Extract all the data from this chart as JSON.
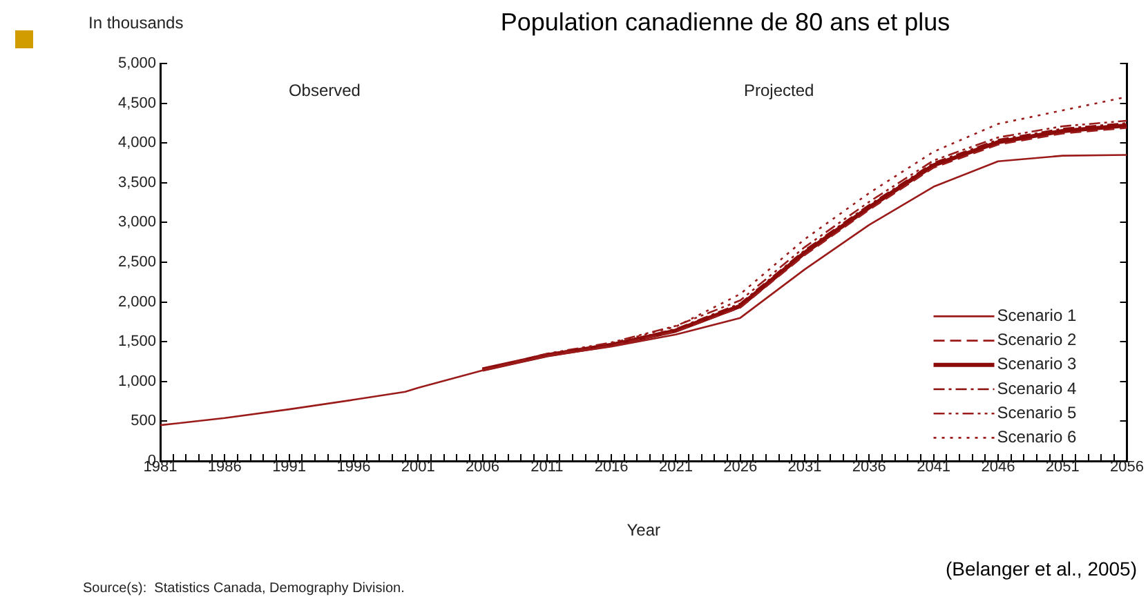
{
  "chart_data": {
    "type": "line",
    "title": "Population canadienne de 80 ans et plus",
    "xlabel": "Year",
    "ylabel": "In thousands",
    "xlim": [
      1981,
      2056
    ],
    "xticks": [
      1981,
      {
        "value": 1982,
        "label": null
      },
      {
        "value": 1983,
        "label": null
      },
      {
        "value": 1984,
        "label": null
      },
      {
        "value": 1985,
        "label": null
      },
      1986,
      {
        "value": 1987,
        "label": null
      },
      {
        "value": 1988,
        "label": null
      },
      {
        "value": 1989,
        "label": null
      },
      {
        "value": 1990,
        "label": null
      },
      1991,
      {
        "value": 1992,
        "label": null
      },
      {
        "value": 1993,
        "label": null
      },
      {
        "value": 1994,
        "label": null
      },
      {
        "value": 1995,
        "label": null
      },
      1996,
      {
        "value": 1997,
        "label": null
      },
      {
        "value": 1998,
        "label": null
      },
      {
        "value": 1999,
        "label": null
      },
      {
        "value": 2000,
        "label": null
      },
      2001,
      {
        "value": 2002,
        "label": null
      },
      {
        "value": 2003,
        "label": null
      },
      {
        "value": 2004,
        "label": null
      },
      {
        "value": 2005,
        "label": null
      },
      2006,
      {
        "value": 2007,
        "label": null
      },
      {
        "value": 2008,
        "label": null
      },
      {
        "value": 2009,
        "label": null
      },
      {
        "value": 2010,
        "label": null
      },
      2011,
      {
        "value": 2012,
        "label": null
      },
      {
        "value": 2013,
        "label": null
      },
      {
        "value": 2014,
        "label": null
      },
      {
        "value": 2015,
        "label": null
      },
      2016,
      {
        "value": 2017,
        "label": null
      },
      {
        "value": 2018,
        "label": null
      },
      {
        "value": 2019,
        "label": null
      },
      {
        "value": 2020,
        "label": null
      },
      2021,
      {
        "value": 2022,
        "label": null
      },
      {
        "value": 2023,
        "label": null
      },
      {
        "value": 2024,
        "label": null
      },
      {
        "value": 2025,
        "label": null
      },
      2026,
      {
        "value": 2027,
        "label": null
      },
      {
        "value": 2028,
        "label": null
      },
      {
        "value": 2029,
        "label": null
      },
      {
        "value": 2030,
        "label": null
      },
      2031,
      {
        "value": 2032,
        "label": null
      },
      {
        "value": 2033,
        "label": null
      },
      {
        "value": 2034,
        "label": null
      },
      {
        "value": 2035,
        "label": null
      },
      2036,
      {
        "value": 2037,
        "label": null
      },
      {
        "value": 2038,
        "label": null
      },
      {
        "value": 2039,
        "label": null
      },
      {
        "value": 2040,
        "label": null
      },
      2041,
      {
        "value": 2042,
        "label": null
      },
      {
        "value": 2043,
        "label": null
      },
      {
        "value": 2044,
        "label": null
      },
      {
        "value": 2045,
        "label": null
      },
      2046,
      {
        "value": 2047,
        "label": null
      },
      {
        "value": 2048,
        "label": null
      },
      {
        "value": 2049,
        "label": null
      },
      {
        "value": 2050,
        "label": null
      },
      2051,
      {
        "value": 2052,
        "label": null
      },
      {
        "value": 2053,
        "label": null
      },
      {
        "value": 2054,
        "label": null
      },
      {
        "value": 2055,
        "label": null
      },
      2056
    ],
    "ylim": [
      0,
      5000
    ],
    "yticks": [
      {
        "value": 0,
        "label": "0"
      },
      {
        "value": 500,
        "label": "500"
      },
      {
        "value": 1000,
        "label": "1,000"
      },
      {
        "value": 1500,
        "label": "1,500"
      },
      {
        "value": 2000,
        "label": "2,000"
      },
      {
        "value": 2500,
        "label": "2,500"
      },
      {
        "value": 3000,
        "label": "3,000"
      },
      {
        "value": 3500,
        "label": "3,500"
      },
      {
        "value": 4000,
        "label": "4,000"
      },
      {
        "value": 4500,
        "label": "4,500"
      },
      {
        "value": 5000,
        "label": "5,000"
      }
    ],
    "grid": false,
    "legend": "bottom right",
    "marker": "none",
    "series": [
      {
        "name": "Scenario 1",
        "color": "#9b1b1b",
        "line_style": "solid",
        "x": [
          1981,
          1986,
          1991,
          1996,
          2000,
          2001,
          2006,
          2011,
          2016,
          2021,
          2026,
          2031,
          2036,
          2041,
          2046,
          2051,
          2056
        ],
        "values": [
          450,
          540,
          650,
          770,
          870,
          920,
          1140,
          1320,
          1440,
          1590,
          1800,
          2410,
          2970,
          3450,
          3770,
          3840,
          3850
        ]
      },
      {
        "name": "Scenario 2",
        "color": "#9b1b1b",
        "line_style": "dashed",
        "x": [
          2006,
          2011,
          2016,
          2021,
          2026,
          2031,
          2036,
          2041,
          2046,
          2051,
          2056
        ],
        "values": [
          1150,
          1330,
          1450,
          1630,
          1930,
          2590,
          3160,
          3690,
          3980,
          4120,
          4190
        ]
      },
      {
        "name": "Scenario 3",
        "color": "#8b0a0a",
        "line_style": "solid",
        "x": [
          2006,
          2011,
          2016,
          2021,
          2026,
          2031,
          2036,
          2041,
          2046,
          2051,
          2056
        ],
        "values": [
          1150,
          1330,
          1460,
          1640,
          1950,
          2620,
          3190,
          3720,
          4010,
          4150,
          4220
        ]
      },
      {
        "name": "Scenario 4",
        "color": "#8b0a0a",
        "line_style": "dashdot",
        "x": [
          2006,
          2011,
          2016,
          2021,
          2026,
          2031,
          2036,
          2041,
          2046,
          2051,
          2056
        ],
        "values": [
          1150,
          1340,
          1470,
          1660,
          1980,
          2650,
          3220,
          3750,
          4040,
          4180,
          4250
        ]
      },
      {
        "name": "Scenario 5",
        "color": "#9b1b1b",
        "line_style": "dashdotdot",
        "x": [
          2006,
          2011,
          2016,
          2021,
          2026,
          2031,
          2036,
          2041,
          2046,
          2051,
          2056
        ],
        "values": [
          1150,
          1350,
          1490,
          1700,
          2020,
          2690,
          3260,
          3780,
          4070,
          4210,
          4280
        ]
      },
      {
        "name": "Scenario 6",
        "color": "#9b1b1b",
        "line_style": "dotted",
        "x": [
          2006,
          2011,
          2016,
          2021,
          2026,
          2031,
          2036,
          2041,
          2046,
          2051,
          2056
        ],
        "values": [
          1150,
          1340,
          1480,
          1690,
          2100,
          2790,
          3370,
          3890,
          4240,
          4410,
          4580
        ]
      }
    ],
    "annotations": [
      "Observed",
      "Projected",
      "Source(s):  Statistics Canada, Demography Division.",
      "(Belanger et al., 2005)"
    ]
  }
}
